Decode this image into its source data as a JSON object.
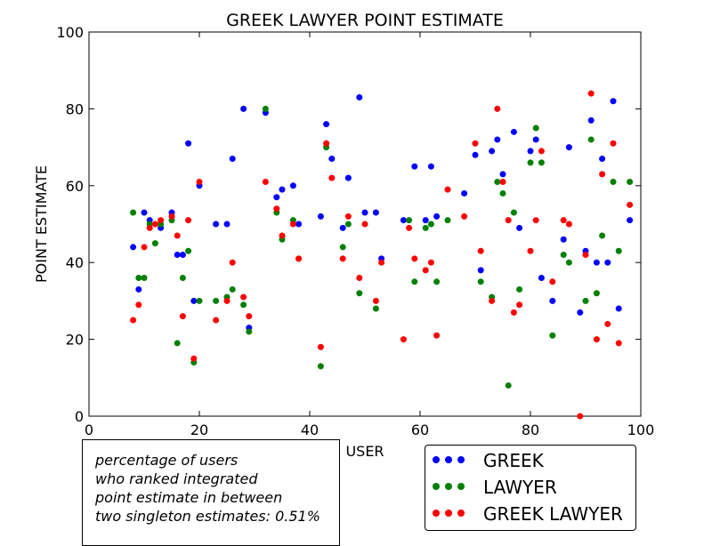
{
  "chart_data": {
    "type": "scatter",
    "title": "GREEK LAWYER POINT ESTIMATE",
    "xlabel": "USER",
    "ylabel": "POINT ESTIMATE",
    "xlim": [
      0,
      100
    ],
    "ylim": [
      0,
      100
    ],
    "xticks": [
      0,
      20,
      40,
      60,
      80,
      100
    ],
    "yticks": [
      0,
      20,
      40,
      60,
      80,
      100
    ],
    "grid": false,
    "legend_position": "bottom-right outside",
    "series": [
      {
        "name": "GREEK",
        "color": "#0000ff",
        "points": [
          [
            8,
            44
          ],
          [
            9,
            33
          ],
          [
            10,
            53
          ],
          [
            11,
            51
          ],
          [
            13,
            49
          ],
          [
            15,
            53
          ],
          [
            16,
            42
          ],
          [
            17,
            42
          ],
          [
            18,
            71
          ],
          [
            19,
            30
          ],
          [
            20,
            60
          ],
          [
            23,
            50
          ],
          [
            25,
            50
          ],
          [
            26,
            67
          ],
          [
            28,
            80
          ],
          [
            29,
            23
          ],
          [
            32,
            79
          ],
          [
            34,
            57
          ],
          [
            35,
            59
          ],
          [
            37,
            60
          ],
          [
            38,
            50
          ],
          [
            42,
            52
          ],
          [
            43,
            76
          ],
          [
            44,
            67
          ],
          [
            46,
            49
          ],
          [
            47,
            62
          ],
          [
            49,
            83
          ],
          [
            50,
            53
          ],
          [
            52,
            53
          ],
          [
            53,
            41
          ],
          [
            57,
            51
          ],
          [
            59,
            65
          ],
          [
            61,
            51
          ],
          [
            62,
            65
          ],
          [
            63,
            52
          ],
          [
            68,
            58
          ],
          [
            70,
            68
          ],
          [
            71,
            38
          ],
          [
            73,
            69
          ],
          [
            74,
            72
          ],
          [
            75,
            63
          ],
          [
            77,
            74
          ],
          [
            78,
            49
          ],
          [
            80,
            69
          ],
          [
            81,
            72
          ],
          [
            82,
            36
          ],
          [
            84,
            30
          ],
          [
            86,
            46
          ],
          [
            87,
            70
          ],
          [
            89,
            27
          ],
          [
            90,
            43
          ],
          [
            91,
            77
          ],
          [
            92,
            40
          ],
          [
            93,
            67
          ],
          [
            94,
            40
          ],
          [
            95,
            82
          ],
          [
            96,
            28
          ],
          [
            98,
            51
          ]
        ]
      },
      {
        "name": "LAWYER",
        "color": "#008000",
        "points": [
          [
            8,
            53
          ],
          [
            9,
            36
          ],
          [
            10,
            36
          ],
          [
            11,
            50
          ],
          [
            12,
            45
          ],
          [
            13,
            50
          ],
          [
            15,
            51
          ],
          [
            16,
            19
          ],
          [
            17,
            36
          ],
          [
            18,
            43
          ],
          [
            19,
            14
          ],
          [
            20,
            30
          ],
          [
            23,
            30
          ],
          [
            25,
            31
          ],
          [
            26,
            33
          ],
          [
            28,
            29
          ],
          [
            29,
            22
          ],
          [
            32,
            80
          ],
          [
            34,
            53
          ],
          [
            35,
            46
          ],
          [
            37,
            51
          ],
          [
            38,
            41
          ],
          [
            42,
            13
          ],
          [
            43,
            70
          ],
          [
            46,
            44
          ],
          [
            47,
            50
          ],
          [
            49,
            32
          ],
          [
            52,
            28
          ],
          [
            58,
            51
          ],
          [
            59,
            35
          ],
          [
            61,
            49
          ],
          [
            62,
            50
          ],
          [
            63,
            35
          ],
          [
            65,
            51
          ],
          [
            71,
            35
          ],
          [
            73,
            31
          ],
          [
            74,
            61
          ],
          [
            75,
            58
          ],
          [
            76,
            8
          ],
          [
            77,
            53
          ],
          [
            78,
            33
          ],
          [
            80,
            66
          ],
          [
            81,
            75
          ],
          [
            82,
            66
          ],
          [
            84,
            21
          ],
          [
            86,
            42
          ],
          [
            87,
            40
          ],
          [
            90,
            30
          ],
          [
            91,
            72
          ],
          [
            92,
            32
          ],
          [
            93,
            47
          ],
          [
            95,
            61
          ],
          [
            96,
            43
          ],
          [
            98,
            61
          ]
        ]
      },
      {
        "name": "GREEK LAWYER",
        "color": "#ff0000",
        "points": [
          [
            8,
            25
          ],
          [
            9,
            29
          ],
          [
            10,
            44
          ],
          [
            11,
            49
          ],
          [
            12,
            50
          ],
          [
            13,
            51
          ],
          [
            15,
            52
          ],
          [
            16,
            47
          ],
          [
            17,
            26
          ],
          [
            18,
            51
          ],
          [
            19,
            15
          ],
          [
            20,
            61
          ],
          [
            23,
            25
          ],
          [
            25,
            30
          ],
          [
            26,
            40
          ],
          [
            28,
            31
          ],
          [
            29,
            26
          ],
          [
            32,
            61
          ],
          [
            34,
            54
          ],
          [
            35,
            47
          ],
          [
            37,
            50
          ],
          [
            38,
            41
          ],
          [
            42,
            18
          ],
          [
            43,
            71
          ],
          [
            44,
            62
          ],
          [
            46,
            41
          ],
          [
            47,
            52
          ],
          [
            49,
            36
          ],
          [
            50,
            50
          ],
          [
            52,
            30
          ],
          [
            53,
            40
          ],
          [
            57,
            20
          ],
          [
            58,
            49
          ],
          [
            59,
            41
          ],
          [
            61,
            38
          ],
          [
            62,
            40
          ],
          [
            63,
            21
          ],
          [
            65,
            59
          ],
          [
            68,
            52
          ],
          [
            70,
            71
          ],
          [
            71,
            43
          ],
          [
            73,
            30
          ],
          [
            74,
            80
          ],
          [
            75,
            61
          ],
          [
            76,
            51
          ],
          [
            77,
            27
          ],
          [
            78,
            29
          ],
          [
            80,
            43
          ],
          [
            81,
            51
          ],
          [
            82,
            69
          ],
          [
            84,
            35
          ],
          [
            86,
            51
          ],
          [
            87,
            50
          ],
          [
            89,
            0
          ],
          [
            90,
            42
          ],
          [
            91,
            84
          ],
          [
            92,
            20
          ],
          [
            93,
            63
          ],
          [
            94,
            24
          ],
          [
            95,
            71
          ],
          [
            96,
            19
          ],
          [
            98,
            55
          ]
        ]
      }
    ]
  },
  "annotation": {
    "line1": "percentage of users",
    "line2": "who ranked integrated",
    "line3": "point estimate in between",
    "line4": "two singleton estimates: 0.51%"
  }
}
